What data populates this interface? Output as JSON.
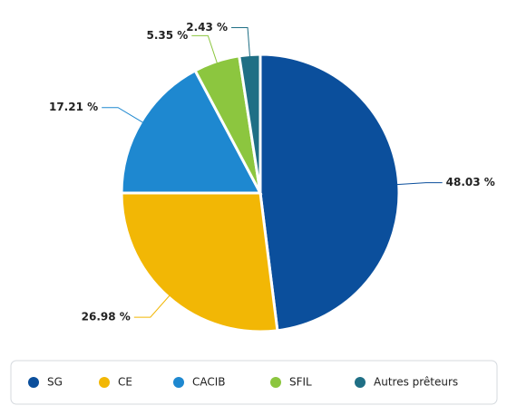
{
  "chart_data": {
    "type": "pie",
    "categories": [
      "SG",
      "CE",
      "CACIB",
      "SFIL",
      "Autres prêteurs"
    ],
    "values": [
      48.03,
      26.98,
      17.21,
      5.35,
      2.43
    ],
    "value_labels": [
      "48.03 %",
      "26.98 %",
      "17.21 %",
      "5.35 %",
      "2.43 %"
    ],
    "colors": [
      "#0b4f9c",
      "#f2b705",
      "#1e88d0",
      "#8cc63f",
      "#1f6f85"
    ],
    "legend": "bottom"
  }
}
